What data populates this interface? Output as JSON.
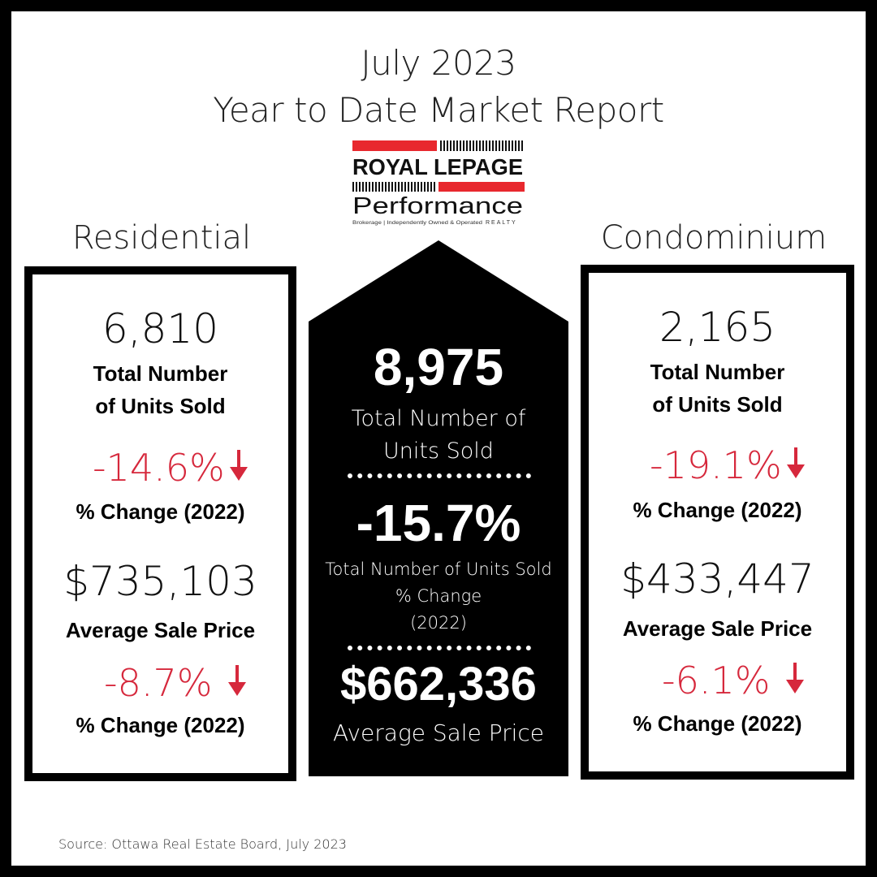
{
  "header": {
    "line1": "July 2023",
    "line2": "Year to Date Market Report"
  },
  "logo": {
    "brand": "ROYAL LePAGE",
    "subbrand": "Performance",
    "tagline": "Brokerage | Independently Owned & Operated",
    "realty": "REALTY",
    "colors": {
      "red": "#e8282e",
      "black": "#000000"
    }
  },
  "residential": {
    "title": "Residential",
    "units_sold": "6,810",
    "units_label_1": "Total Number",
    "units_label_2": "of Units Sold",
    "units_change": "-14.6%",
    "change_label_1": "% Change (2022)",
    "avg_price": "$735,103",
    "avg_price_label": "Average Sale Price",
    "price_change": "-8.7%",
    "change_label_2": "% Change (2022)"
  },
  "center": {
    "units_sold": "8,975",
    "units_label_1": "Total Number of",
    "units_label_2": "Units Sold",
    "units_change": "-15.7%",
    "change_label_1": "Total Number of Units Sold",
    "change_label_2": "% Change",
    "change_label_3": "(2022)",
    "avg_price": "$662,336",
    "avg_price_label": "Average Sale Price"
  },
  "condominium": {
    "title": "Condominium",
    "units_sold": "2,165",
    "units_label_1": "Total Number",
    "units_label_2": "of Units Sold",
    "units_change": "-19.1%",
    "change_label_1": "% Change (2022)",
    "avg_price": "$433,447",
    "avg_price_label": "Average Sale Price",
    "price_change": "-6.1%",
    "change_label_2": "% Change (2022)"
  },
  "source": "Source: Ottawa Real Estate Board, July 2023",
  "colors": {
    "accent_red": "#d6283c",
    "frame": "#000000"
  }
}
